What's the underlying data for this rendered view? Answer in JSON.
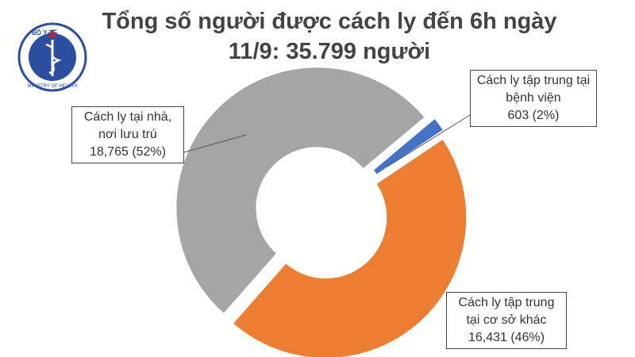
{
  "logo": {
    "top_text": "BỘ Y TẾ",
    "bottom_text": "MINISTRY OF HEALTH"
  },
  "chart_data": {
    "type": "donut",
    "title": "Tổng số người được cách ly đến 6h ngày 11/9: 35.799 người",
    "categories": [
      "Cách ly tập trung tại bệnh viện",
      "Cách ly tập trung tại cơ sở khác",
      "Cách ly tại nhà, nơi lưu trú"
    ],
    "values": [
      603,
      16431,
      18765
    ],
    "value_labels": [
      "603 (2%)",
      "16,431 (46%)",
      "18,765 (52%)"
    ],
    "colors": [
      "#4472c4",
      "#ed7d31",
      "#a5a5a5"
    ]
  }
}
